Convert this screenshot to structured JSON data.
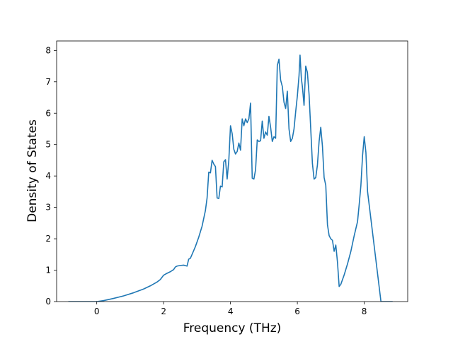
{
  "chart_data": {
    "type": "line",
    "title": "",
    "xlabel": "Frequency (THz)",
    "ylabel": "Density of States",
    "xlim": [
      -1.2,
      9.3
    ],
    "ylim": [
      0,
      8.3
    ],
    "xticks": [
      0,
      2,
      4,
      6,
      8
    ],
    "yticks": [
      0,
      1,
      2,
      3,
      4,
      5,
      6,
      7,
      8
    ],
    "grid": false,
    "legend": "none",
    "line_color": "#1f77b4",
    "series": [
      {
        "x": [
          -0.85,
          0.0,
          0.2,
          0.5,
          0.8,
          1.1,
          1.4,
          1.6,
          1.8,
          1.9,
          2.0,
          2.05,
          2.1,
          2.2,
          2.3,
          2.35,
          2.4,
          2.5,
          2.6,
          2.7,
          2.75,
          2.8,
          2.85,
          2.95,
          3.05,
          3.15,
          3.25,
          3.3,
          3.35,
          3.4,
          3.45,
          3.5,
          3.55,
          3.6,
          3.65,
          3.7,
          3.75,
          3.8,
          3.85,
          3.9,
          3.95,
          4.0,
          4.05,
          4.1,
          4.15,
          4.2,
          4.25,
          4.3,
          4.35,
          4.4,
          4.45,
          4.5,
          4.55,
          4.6,
          4.65,
          4.7,
          4.75,
          4.8,
          4.85,
          4.9,
          4.95,
          5.0,
          5.05,
          5.1,
          5.15,
          5.2,
          5.25,
          5.3,
          5.35,
          5.4,
          5.45,
          5.5,
          5.55,
          5.6,
          5.65,
          5.7,
          5.75,
          5.8,
          5.85,
          5.9,
          5.95,
          6.0,
          6.05,
          6.08,
          6.12,
          6.15,
          6.2,
          6.25,
          6.3,
          6.35,
          6.4,
          6.45,
          6.5,
          6.55,
          6.6,
          6.65,
          6.7,
          6.75,
          6.8,
          6.85,
          6.9,
          6.95,
          7.0,
          7.05,
          7.1,
          7.15,
          7.2,
          7.25,
          7.3,
          7.4,
          7.5,
          7.6,
          7.7,
          7.8,
          7.85,
          7.9,
          7.95,
          8.0,
          8.05,
          8.1,
          8.5,
          8.85
        ],
        "y": [
          0.0,
          0.0,
          0.03,
          0.1,
          0.18,
          0.28,
          0.4,
          0.5,
          0.62,
          0.7,
          0.84,
          0.87,
          0.9,
          0.95,
          1.02,
          1.1,
          1.13,
          1.15,
          1.16,
          1.13,
          1.35,
          1.38,
          1.5,
          1.75,
          2.05,
          2.4,
          2.9,
          3.3,
          4.12,
          4.1,
          4.5,
          4.38,
          4.3,
          3.3,
          3.28,
          3.68,
          3.65,
          4.45,
          4.52,
          3.9,
          4.5,
          5.6,
          5.35,
          4.85,
          4.7,
          4.78,
          5.05,
          4.82,
          5.82,
          5.6,
          5.82,
          5.7,
          5.82,
          6.32,
          3.93,
          3.9,
          4.2,
          5.15,
          5.1,
          5.12,
          5.75,
          5.2,
          5.4,
          5.3,
          5.9,
          5.55,
          5.1,
          5.25,
          5.2,
          7.52,
          7.72,
          7.05,
          6.85,
          6.35,
          6.15,
          6.7,
          5.5,
          5.1,
          5.2,
          5.5,
          6.05,
          6.55,
          7.2,
          7.85,
          7.1,
          6.85,
          6.25,
          7.5,
          7.3,
          6.6,
          5.5,
          4.4,
          3.9,
          3.95,
          4.35,
          5.1,
          5.55,
          4.95,
          3.95,
          3.7,
          2.45,
          2.1,
          2.0,
          1.95,
          1.6,
          1.8,
          1.25,
          0.48,
          0.55,
          0.85,
          1.2,
          1.6,
          2.1,
          2.55,
          3.1,
          3.7,
          4.65,
          5.25,
          4.75,
          3.5,
          0.0,
          0.0
        ]
      }
    ]
  }
}
